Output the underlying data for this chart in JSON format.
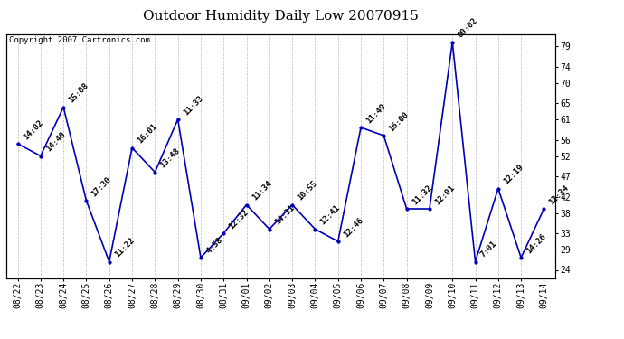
{
  "title": "Outdoor Humidity Daily Low 20070915",
  "copyright": "Copyright 2007 Cartronics.com",
  "line_color": "#0000bb",
  "marker_color": "#0000bb",
  "bg_color": "#ffffff",
  "grid_color": "#bbbbbb",
  "categories": [
    "08/22",
    "08/23",
    "08/24",
    "08/25",
    "08/26",
    "08/27",
    "08/28",
    "08/29",
    "08/30",
    "08/31",
    "09/01",
    "09/02",
    "09/03",
    "09/04",
    "09/05",
    "09/06",
    "09/07",
    "09/08",
    "09/09",
    "09/10",
    "09/11",
    "09/12",
    "09/13",
    "09/14"
  ],
  "values": [
    55,
    52,
    64,
    41,
    26,
    54,
    48,
    61,
    27,
    33,
    40,
    34,
    40,
    34,
    31,
    59,
    57,
    39,
    39,
    80,
    26,
    44,
    27,
    39
  ],
  "times": [
    "14:02",
    "14:40",
    "15:08",
    "17:30",
    "11:22",
    "16:01",
    "13:48",
    "11:33",
    "4:58",
    "12:32",
    "11:34",
    "14:31",
    "10:55",
    "12:41",
    "12:46",
    "11:49",
    "16:00",
    "11:32",
    "12:01",
    "00:02",
    "7:01",
    "12:19",
    "14:26",
    "12:34"
  ],
  "ylim": [
    22,
    82
  ],
  "yticks": [
    24,
    29,
    33,
    38,
    42,
    47,
    52,
    56,
    61,
    65,
    70,
    74,
    79
  ],
  "title_fontsize": 11,
  "tick_fontsize": 7,
  "annotation_fontsize": 6.5
}
